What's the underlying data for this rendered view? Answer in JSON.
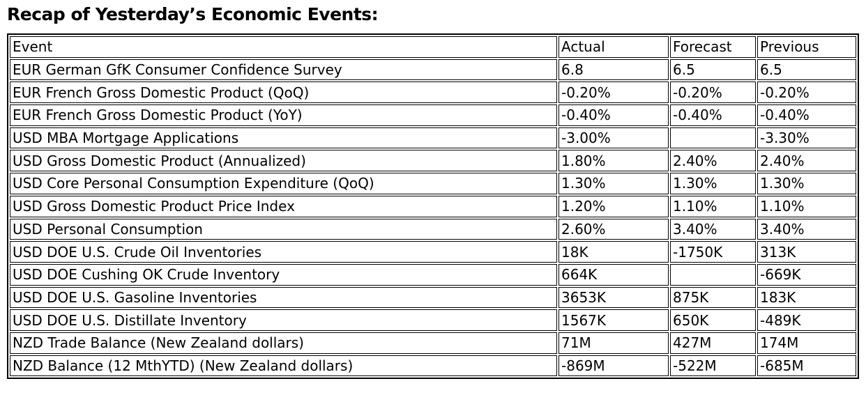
{
  "page": {
    "title": "Recap of Yesterday’s Economic Events:"
  },
  "colors": {
    "text": "#000000",
    "border": "#000000",
    "background": "#ffffff"
  },
  "table": {
    "column_keys": [
      "event",
      "actual",
      "forecast",
      "previous"
    ],
    "columns": [
      "Event",
      "Actual",
      "Forecast",
      "Previous"
    ],
    "rows": [
      [
        "EUR German GfK Consumer Confidence Survey",
        "6.8",
        "6.5",
        "6.5"
      ],
      [
        "EUR French Gross Domestic Product (QoQ)",
        "-0.20%",
        "-0.20%",
        "-0.20%"
      ],
      [
        "EUR French Gross Domestic Product (YoY)",
        "-0.40%",
        "-0.40%",
        "-0.40%"
      ],
      [
        "USD MBA Mortgage Applications",
        "-3.00%",
        "",
        "-3.30%"
      ],
      [
        "USD Gross Domestic Product (Annualized)",
        "1.80%",
        "2.40%",
        "2.40%"
      ],
      [
        "USD Core Personal Consumption Expenditure (QoQ)",
        "1.30%",
        "1.30%",
        "1.30%"
      ],
      [
        "USD Gross Domestic Product Price Index",
        "1.20%",
        "1.10%",
        "1.10%"
      ],
      [
        "USD Personal Consumption",
        "2.60%",
        "3.40%",
        "3.40%"
      ],
      [
        "USD DOE U.S. Crude Oil Inventories",
        "18K",
        "-1750K",
        "313K"
      ],
      [
        "USD DOE Cushing OK Crude Inventory",
        "664K",
        "",
        "-669K"
      ],
      [
        "USD DOE U.S. Gasoline Inventories",
        "3653K",
        "875K",
        "183K"
      ],
      [
        "USD DOE U.S. Distillate Inventory",
        "1567K",
        "650K",
        "-489K"
      ],
      [
        "NZD Trade Balance (New Zealand dollars)",
        "71M",
        "427M",
        "174M"
      ],
      [
        "NZD Balance (12 MthYTD) (New Zealand dollars)",
        "-869M",
        "-522M",
        "-685M"
      ]
    ]
  }
}
